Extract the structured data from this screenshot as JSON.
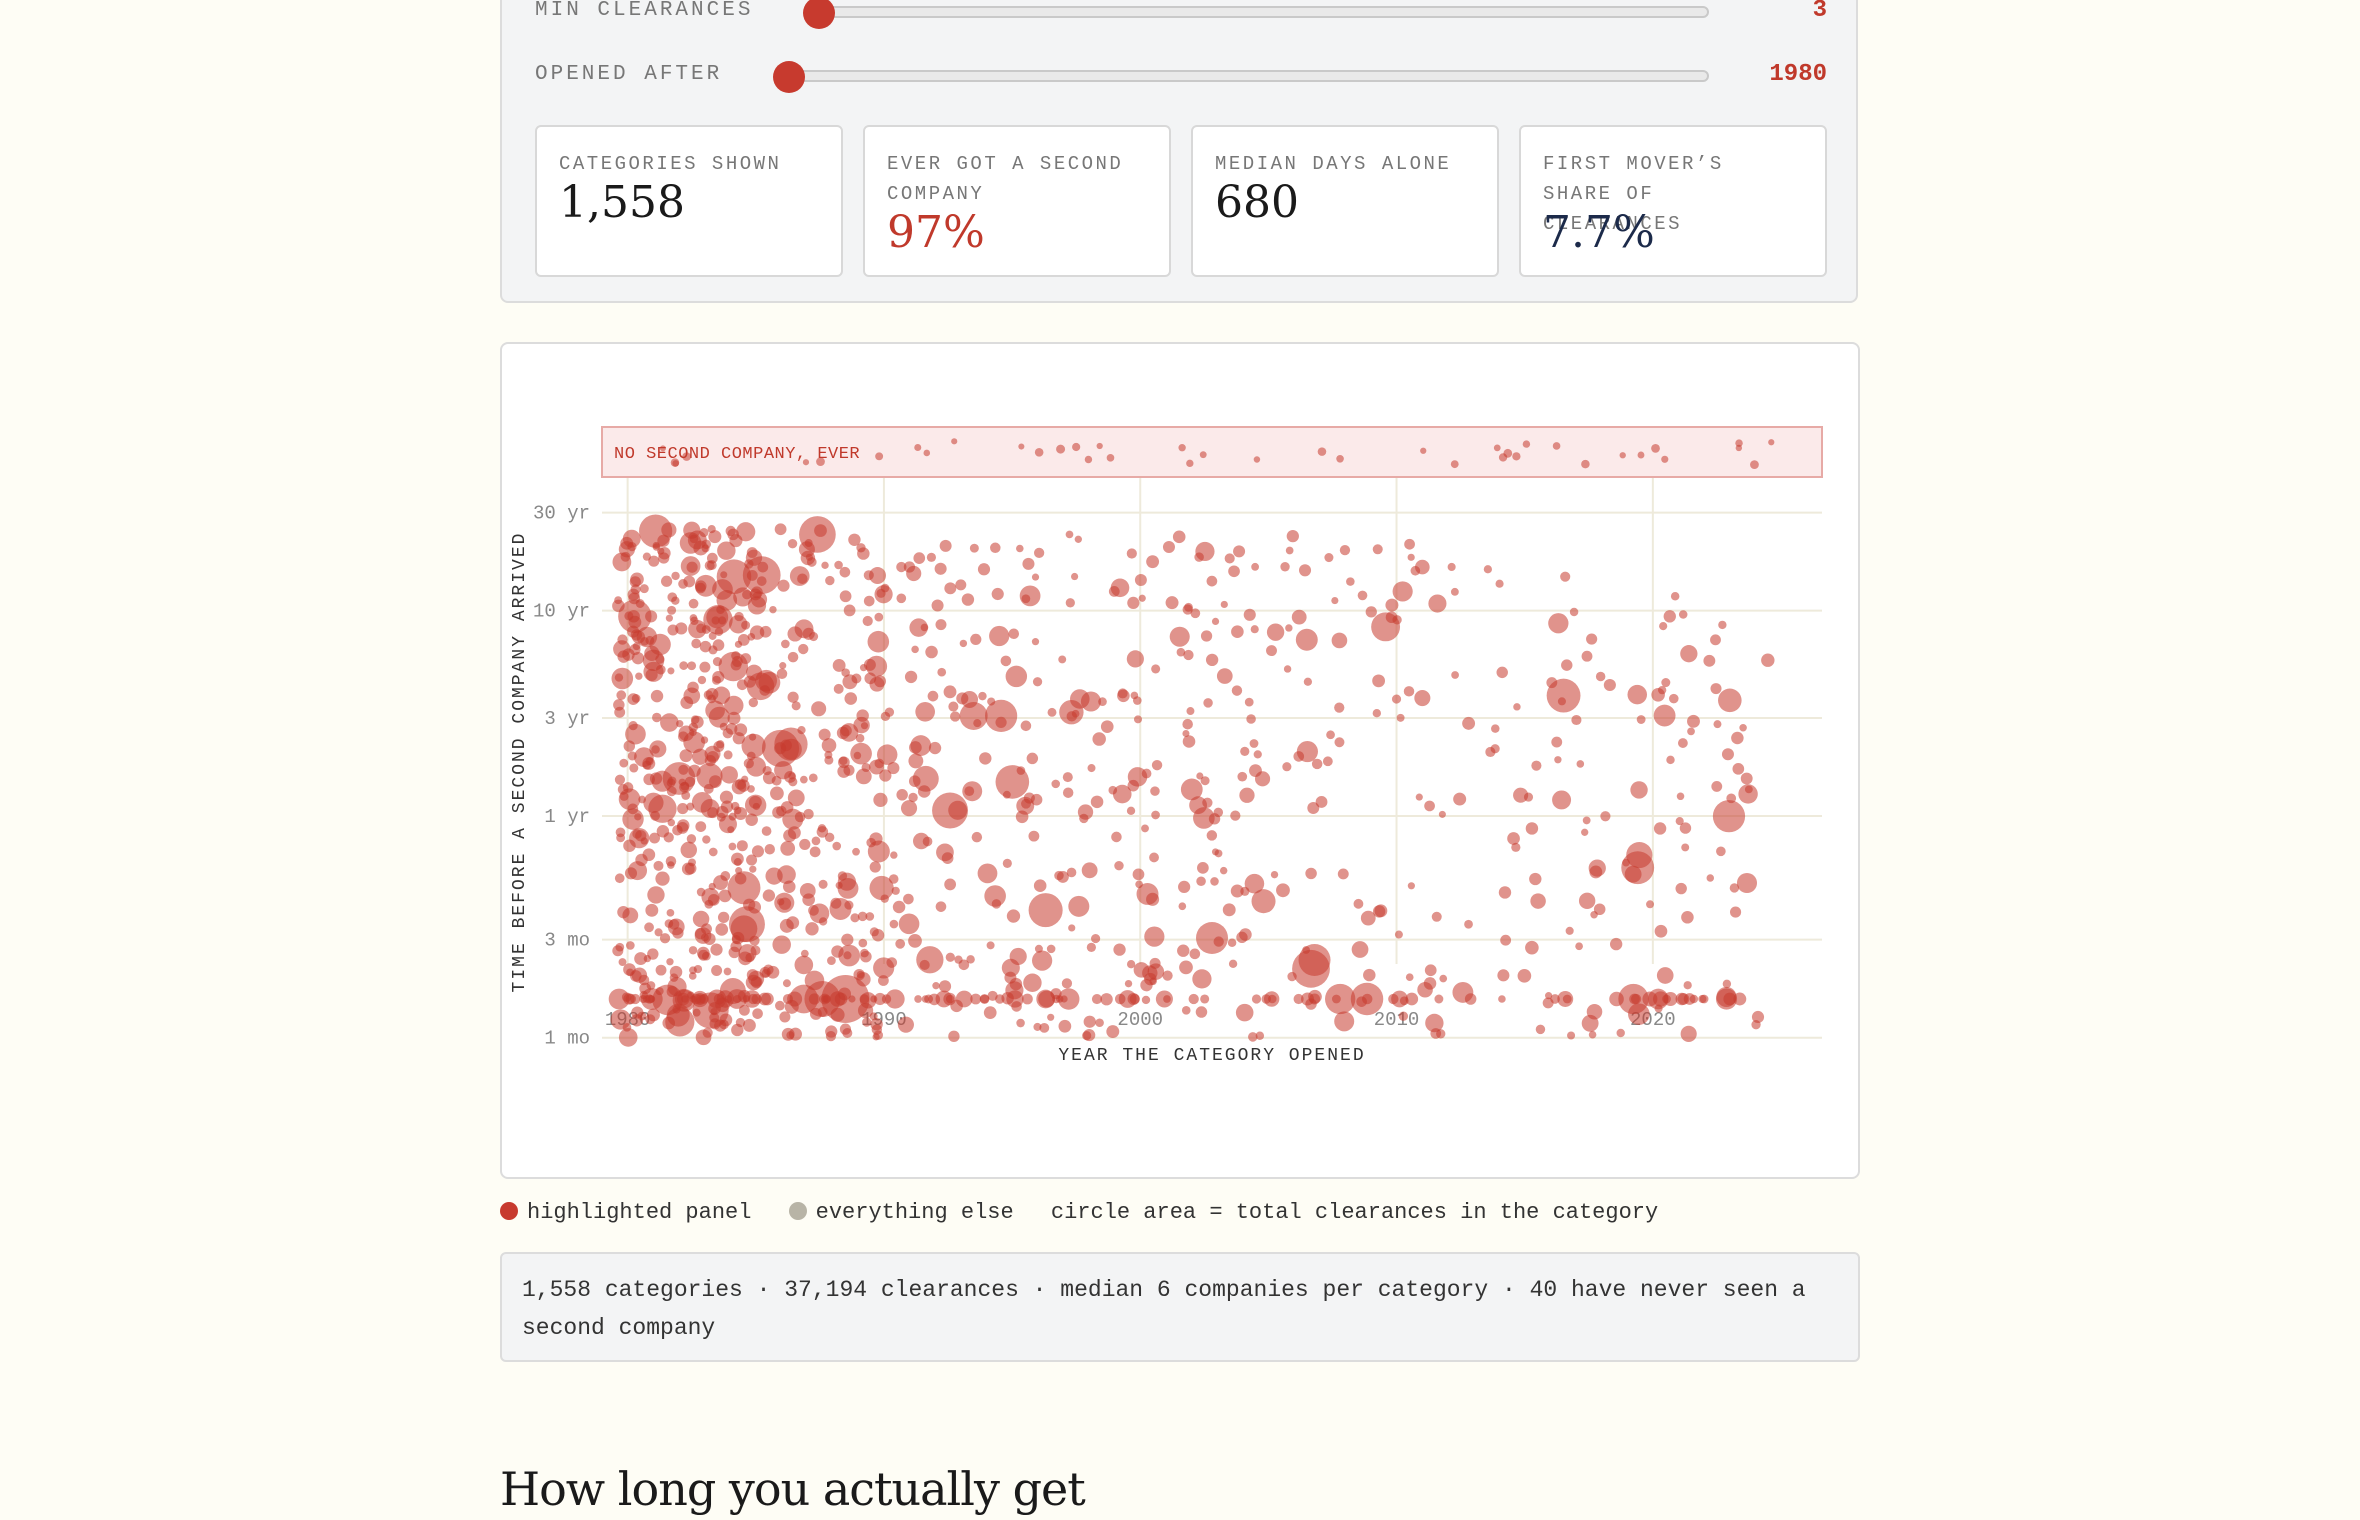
{
  "controls": {
    "sliders": [
      {
        "label": "MIN CLEARANCES",
        "value": "3",
        "fraction": 0.0
      },
      {
        "label": "OPENED AFTER",
        "value": "1980",
        "fraction": 0.0
      }
    ]
  },
  "stats": [
    {
      "label": "CATEGORIES SHOWN",
      "value": "1,558",
      "color": "#1a1a1a"
    },
    {
      "label": "EVER GOT A SECOND COMPANY",
      "value": "97%",
      "color": "#c0392b"
    },
    {
      "label": "MEDIAN DAYS ALONE",
      "value": "680",
      "color": "#1a1a1a"
    },
    {
      "label": "FIRST MOVER’S SHARE OF CLEARANCES",
      "value": "7.7%",
      "color": "#1c2a4a"
    }
  ],
  "chart_data": {
    "type": "scatter",
    "xlabel": "YEAR THE CATEGORY OPENED",
    "ylabel": "TIME BEFORE A SECOND COMPANY ARRIVED",
    "x_ticks": [
      "1980",
      "1990",
      "2000",
      "2010",
      "2020"
    ],
    "x_tick_values": [
      1980,
      1990,
      2000,
      2010,
      2020
    ],
    "xlim": [
      1979,
      2026.6
    ],
    "y_scale": "log",
    "y_ticks": [
      {
        "label": "30 yr",
        "years": 30
      },
      {
        "label": "10 yr",
        "years": 10
      },
      {
        "label": "3 yr",
        "years": 3
      },
      {
        "label": "1 yr",
        "years": 1
      },
      {
        "label": "3 mo",
        "years": 0.25
      },
      {
        "label": "1 mo",
        "years": 0.0833
      }
    ],
    "no_second_band_label": "NO SECOND COMPANY, EVER",
    "point_color": "#c73a2e",
    "other_color": "#b8b4a6",
    "size_encoding": "circle area = total clearances in the category"
  },
  "legend": {
    "highlighted": "highlighted panel",
    "other": "everything else",
    "size_note": "circle area = total clearances in the category",
    "highlight_color": "#c73a2e",
    "other_color": "#b8b4a6"
  },
  "summary": "1,558 categories · 37,194 clearances · median 6 companies per category · 40 have never seen a second company",
  "section_heading": "How long you actually get"
}
